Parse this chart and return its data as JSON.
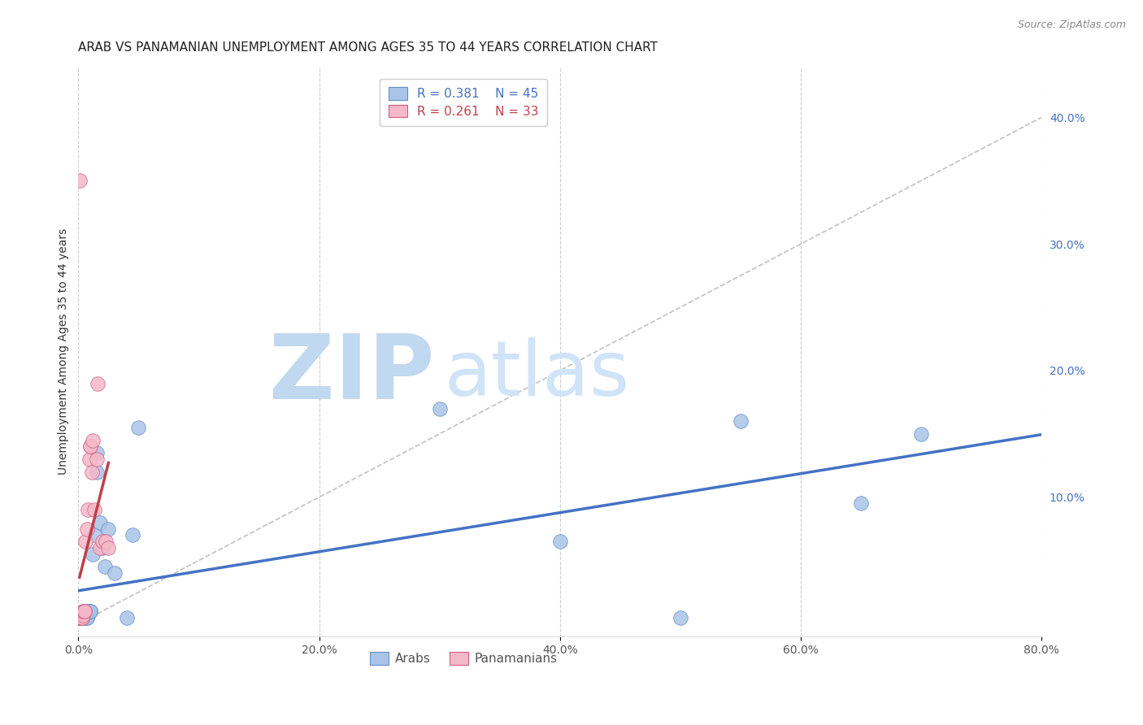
{
  "title": "ARAB VS PANAMANIAN UNEMPLOYMENT AMONG AGES 35 TO 44 YEARS CORRELATION CHART",
  "source": "Source: ZipAtlas.com",
  "ylabel": "Unemployment Among Ages 35 to 44 years",
  "xlim": [
    0.0,
    0.8
  ],
  "ylim": [
    -0.01,
    0.44
  ],
  "xticks": [
    0.0,
    0.2,
    0.4,
    0.6,
    0.8
  ],
  "xticklabels": [
    "0.0%",
    "20.0%",
    "40.0%",
    "60.0%",
    "80.0%"
  ],
  "yticks_right": [
    0.1,
    0.2,
    0.3,
    0.4
  ],
  "ytick_right_labels": [
    "10.0%",
    "20.0%",
    "30.0%",
    "40.0%"
  ],
  "arab_R": 0.381,
  "arab_N": 45,
  "panama_R": 0.261,
  "panama_N": 33,
  "arab_color": "#aac4e8",
  "arab_edge_color": "#6090c8",
  "arab_line_color": "#4472c4",
  "panama_color": "#f5b8c8",
  "panama_edge_color": "#d06080",
  "panama_line_color": "#c0404a",
  "legend_arab_color": "#aac4e8",
  "legend_panama_color": "#f5b8c8",
  "arab_x": [
    0.001,
    0.001,
    0.001,
    0.002,
    0.002,
    0.002,
    0.002,
    0.003,
    0.003,
    0.003,
    0.003,
    0.004,
    0.004,
    0.004,
    0.005,
    0.005,
    0.005,
    0.006,
    0.006,
    0.007,
    0.007,
    0.008,
    0.008,
    0.009,
    0.01,
    0.01,
    0.01,
    0.012,
    0.013,
    0.015,
    0.015,
    0.018,
    0.02,
    0.022,
    0.025,
    0.03,
    0.04,
    0.045,
    0.05,
    0.3,
    0.4,
    0.5,
    0.55,
    0.65,
    0.7
  ],
  "arab_y": [
    0.005,
    0.005,
    0.005,
    0.005,
    0.005,
    0.005,
    0.005,
    0.005,
    0.005,
    0.005,
    0.005,
    0.005,
    0.005,
    0.005,
    0.005,
    0.005,
    0.005,
    0.005,
    0.005,
    0.005,
    0.005,
    0.01,
    0.01,
    0.01,
    0.01,
    0.01,
    0.01,
    0.055,
    0.07,
    0.12,
    0.135,
    0.08,
    0.06,
    0.045,
    0.075,
    0.04,
    0.005,
    0.07,
    0.155,
    0.17,
    0.065,
    0.005,
    0.16,
    0.095,
    0.15
  ],
  "panama_x": [
    0.001,
    0.001,
    0.001,
    0.001,
    0.001,
    0.002,
    0.002,
    0.002,
    0.002,
    0.003,
    0.003,
    0.003,
    0.004,
    0.004,
    0.004,
    0.005,
    0.005,
    0.006,
    0.007,
    0.008,
    0.009,
    0.01,
    0.01,
    0.011,
    0.012,
    0.013,
    0.015,
    0.016,
    0.018,
    0.02,
    0.023,
    0.025,
    0.001
  ],
  "panama_y": [
    0.005,
    0.005,
    0.005,
    0.005,
    0.005,
    0.005,
    0.005,
    0.005,
    0.005,
    0.005,
    0.005,
    0.005,
    0.007,
    0.01,
    0.01,
    0.01,
    0.01,
    0.065,
    0.075,
    0.09,
    0.13,
    0.14,
    0.14,
    0.12,
    0.145,
    0.09,
    0.13,
    0.19,
    0.06,
    0.065,
    0.065,
    0.06,
    0.35
  ],
  "background_color": "#ffffff",
  "grid_color": "#cccccc",
  "title_fontsize": 11,
  "source_fontsize": 9,
  "axis_label_fontsize": 10,
  "tick_fontsize": 10,
  "legend_fontsize": 11,
  "watermark_zip_color": "#c0d8f0",
  "watermark_atlas_color": "#d0e4f8",
  "watermark_fontsize": 80,
  "arab_line_x": [
    0.0,
    0.8
  ],
  "arab_line_y_start": 0.018,
  "arab_line_y_end": 0.155,
  "panama_line_x": [
    0.0,
    0.025
  ],
  "panama_line_y_start": 0.04,
  "panama_line_y_end": 0.155,
  "diag_line_x": [
    0.0,
    0.8
  ],
  "diag_line_y": [
    0.0,
    0.4
  ]
}
